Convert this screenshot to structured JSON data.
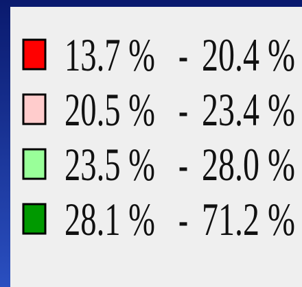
{
  "legend": {
    "separator": "-",
    "items": [
      {
        "color": "#ff0000",
        "from": "13.7 %",
        "to": "20.4 %"
      },
      {
        "color": "#ffcccc",
        "from": "20.5 %",
        "to": "23.4 %"
      },
      {
        "color": "#99ff99",
        "from": "23.5 %",
        "to": "28.0 %"
      },
      {
        "color": "#009900",
        "from": "28.1 %",
        "to": "71.2 %"
      }
    ]
  }
}
